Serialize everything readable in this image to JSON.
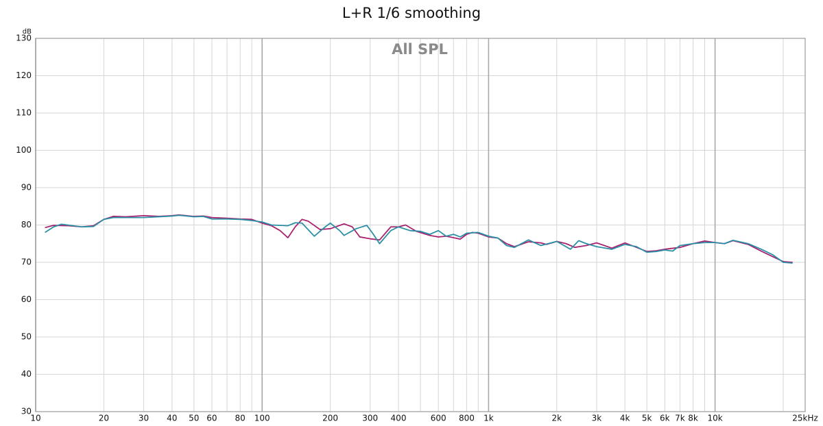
{
  "chart_data": {
    "type": "line",
    "title": "L+R 1/6 smoothing",
    "annotation": "All SPL",
    "y_label": "dB",
    "log_x": true,
    "grid": true,
    "xlim": [
      10,
      25000
    ],
    "ylim": [
      30,
      130
    ],
    "yticks": [
      30,
      40,
      50,
      60,
      70,
      80,
      90,
      100,
      110,
      120,
      130
    ],
    "xticks": [
      10,
      20,
      30,
      40,
      50,
      60,
      80,
      100,
      200,
      300,
      400,
      600,
      800,
      {
        "value": 1000,
        "label": "1k"
      },
      {
        "value": 2000,
        "label": "2k"
      },
      {
        "value": 3000,
        "label": "3k"
      },
      {
        "value": 4000,
        "label": "4k"
      },
      {
        "value": 5000,
        "label": "5k"
      },
      {
        "value": 6000,
        "label": "6k"
      },
      {
        "value": 7000,
        "label": "7k"
      },
      {
        "value": 8000,
        "label": "8k"
      },
      {
        "value": 10000,
        "label": "10k"
      },
      {
        "value": 25000,
        "label": "25kHz"
      }
    ],
    "x_minor_grid": [
      70,
      90,
      500,
      700,
      900,
      9000,
      20000
    ],
    "series": [
      {
        "color": "#a8226f",
        "x": [
          11,
          12,
          14,
          16,
          18,
          20,
          22,
          25,
          30,
          35,
          40,
          43,
          50,
          55,
          60,
          70,
          80,
          90,
          100,
          110,
          120,
          130,
          140,
          150,
          160,
          180,
          200,
          230,
          250,
          270,
          300,
          330,
          370,
          400,
          430,
          480,
          550,
          600,
          650,
          700,
          750,
          800,
          850,
          900,
          1000,
          1100,
          1200,
          1300,
          1500,
          1700,
          1800,
          2000,
          2200,
          2400,
          2700,
          3000,
          3500,
          4000,
          4500,
          5000,
          5500,
          6000,
          7000,
          8000,
          9000,
          10000,
          11000,
          12000,
          14000,
          16000,
          18000,
          20000,
          22000
        ],
        "values": [
          79.3,
          79.9,
          79.8,
          79.5,
          79.8,
          81.5,
          82.3,
          82.2,
          82.5,
          82.3,
          82.5,
          82.7,
          82.3,
          82.4,
          82.0,
          81.8,
          81.6,
          81.5,
          80.5,
          79.8,
          78.5,
          76.6,
          79.5,
          81.5,
          81.0,
          78.8,
          79.0,
          80.3,
          79.5,
          76.8,
          76.3,
          76.0,
          79.5,
          79.5,
          80.0,
          78.3,
          77.2,
          76.8,
          77.0,
          76.6,
          76.2,
          77.5,
          78.0,
          77.8,
          76.8,
          76.5,
          75.0,
          74.2,
          75.5,
          75.2,
          74.8,
          75.6,
          75.0,
          74.0,
          74.5,
          75.2,
          73.8,
          75.2,
          74.0,
          72.9,
          73.1,
          73.5,
          74.0,
          75.0,
          75.7,
          75.3,
          75.0,
          75.8,
          74.8,
          73.0,
          71.5,
          70.2,
          70.0
        ]
      },
      {
        "color": "#2b8fa6",
        "x": [
          11,
          12,
          13,
          16,
          18,
          20,
          22,
          25,
          30,
          40,
          43,
          50,
          55,
          60,
          70,
          80,
          90,
          100,
          110,
          130,
          140,
          150,
          170,
          190,
          200,
          220,
          230,
          260,
          290,
          310,
          330,
          370,
          400,
          450,
          500,
          550,
          600,
          650,
          700,
          750,
          800,
          900,
          1000,
          1100,
          1200,
          1300,
          1500,
          1700,
          2000,
          2300,
          2500,
          2700,
          3000,
          3500,
          4000,
          4500,
          5000,
          5500,
          6000,
          6500,
          7000,
          8000,
          9000,
          10000,
          11000,
          12000,
          14000,
          16000,
          18000,
          20000,
          22000
        ],
        "values": [
          78.0,
          79.5,
          80.2,
          79.5,
          79.6,
          81.5,
          82.0,
          82.0,
          82.0,
          82.4,
          82.6,
          82.2,
          82.3,
          81.6,
          81.6,
          81.5,
          81.2,
          80.8,
          80.0,
          79.8,
          80.6,
          80.5,
          77.0,
          79.5,
          80.5,
          78.5,
          77.2,
          79.0,
          79.9,
          77.5,
          75.0,
          78.5,
          79.5,
          78.5,
          78.3,
          77.5,
          78.5,
          77.0,
          77.5,
          76.8,
          77.8,
          78.0,
          77.0,
          76.5,
          74.5,
          74.0,
          76.0,
          74.5,
          75.6,
          73.5,
          75.8,
          75.0,
          74.2,
          73.5,
          74.8,
          74.2,
          72.7,
          72.9,
          73.3,
          73.0,
          74.5,
          75.0,
          75.3,
          75.3,
          75.0,
          75.9,
          75.0,
          73.5,
          72.0,
          70.0,
          69.8
        ]
      }
    ]
  }
}
